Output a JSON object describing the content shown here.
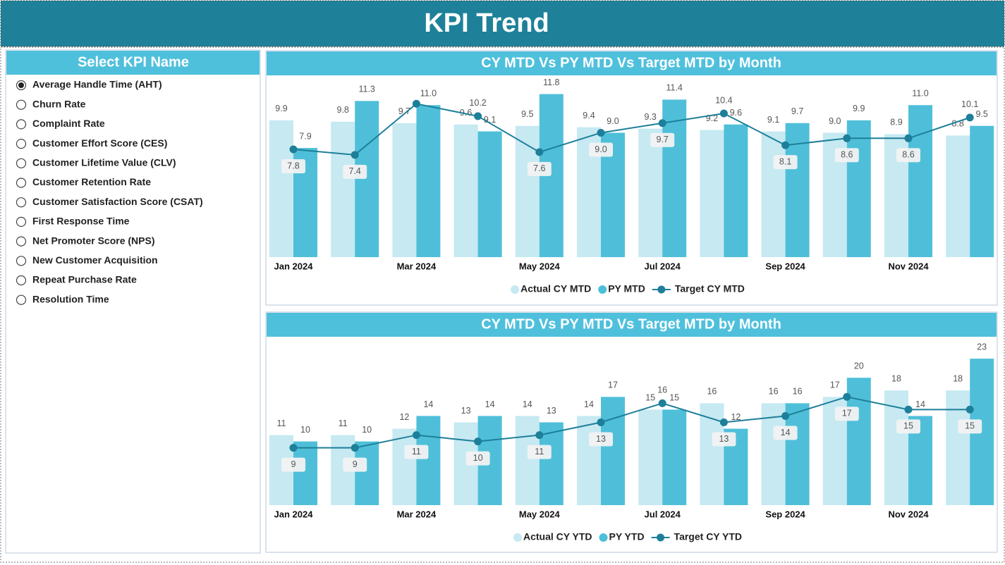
{
  "header": {
    "title": "KPI Trend"
  },
  "slicer": {
    "title": "Select KPI Name",
    "selected_index": 0,
    "items": [
      "Average Handle Time (AHT)",
      "Churn Rate",
      "Complaint Rate",
      "Customer Effort Score (CES)",
      "Customer Lifetime Value (CLV)",
      "Customer Retention Rate",
      "Customer Satisfaction Score (CSAT)",
      "First Response Time",
      "Net Promoter Score (NPS)",
      "New Customer Acquisition",
      "Repeat Purchase Rate",
      "Resolution Time"
    ]
  },
  "chart_data": [
    {
      "type": "bar-line",
      "title": "CY MTD Vs PY MTD Vs Target MTD by Month",
      "categories": [
        "Jan 2024",
        null,
        "Mar 2024",
        null,
        "May 2024",
        null,
        "Jul 2024",
        null,
        "Sep 2024",
        null,
        "Nov 2024",
        null
      ],
      "ylim": [
        0,
        13
      ],
      "series": [
        {
          "name": "Actual CY MTD",
          "type": "bar",
          "color": "#c6e9f2",
          "values": [
            9.9,
            9.8,
            9.7,
            9.6,
            9.5,
            9.4,
            9.3,
            9.2,
            9.1,
            9.0,
            8.9,
            8.8
          ],
          "value_labels": [
            "9.9",
            "9.8",
            "9.7",
            "9.6",
            "9.5",
            "9.4",
            "9.3",
            "9.2",
            "9.1",
            "9.0",
            "8.9",
            "8.8"
          ]
        },
        {
          "name": "PY MTD",
          "type": "bar",
          "color": "#4fbfd9",
          "values": [
            7.9,
            11.3,
            11.0,
            9.1,
            11.8,
            9.0,
            11.4,
            9.6,
            9.7,
            9.9,
            11.0,
            9.5
          ],
          "value_labels": [
            "7.9",
            "11.3",
            "11.0",
            "9.1",
            "11.8",
            "9.0",
            "11.4",
            "9.6",
            "9.7",
            "9.9",
            "11.0",
            "9.5"
          ]
        },
        {
          "name": "Target CY MTD",
          "type": "line",
          "color": "#1d7f99",
          "values": [
            7.8,
            7.4,
            11.1,
            10.2,
            7.6,
            9.0,
            9.7,
            10.4,
            8.1,
            8.6,
            8.6,
            10.1
          ],
          "value_labels": [
            "7.8",
            "7.4",
            null,
            "10.2",
            "7.6",
            "9.0",
            "9.7",
            "10.4",
            "8.1",
            "8.6",
            "8.6",
            "10.1"
          ]
        }
      ]
    },
    {
      "type": "bar-line",
      "title": "CY MTD Vs PY MTD Vs Target MTD by Month",
      "categories": [
        "Jan 2024",
        null,
        "Mar 2024",
        null,
        "May 2024",
        null,
        "Jul 2024",
        null,
        "Sep 2024",
        null,
        "Nov 2024",
        null
      ],
      "ylim": [
        0,
        26
      ],
      "series": [
        {
          "name": "Actual CY YTD",
          "type": "bar",
          "color": "#c6e9f2",
          "values": [
            11,
            11,
            12,
            13,
            14,
            14,
            15,
            16,
            16,
            17,
            18,
            18
          ]
        },
        {
          "name": "PY YTD",
          "type": "bar",
          "color": "#4fbfd9",
          "values": [
            10,
            10,
            14,
            14,
            13,
            17,
            15,
            12,
            16,
            20,
            14,
            23
          ]
        },
        {
          "name": "Target CY YTD",
          "type": "line",
          "color": "#1d7f99",
          "values": [
            9,
            9,
            11,
            10,
            11,
            13,
            16,
            13,
            14,
            17,
            15,
            15
          ]
        }
      ]
    }
  ]
}
